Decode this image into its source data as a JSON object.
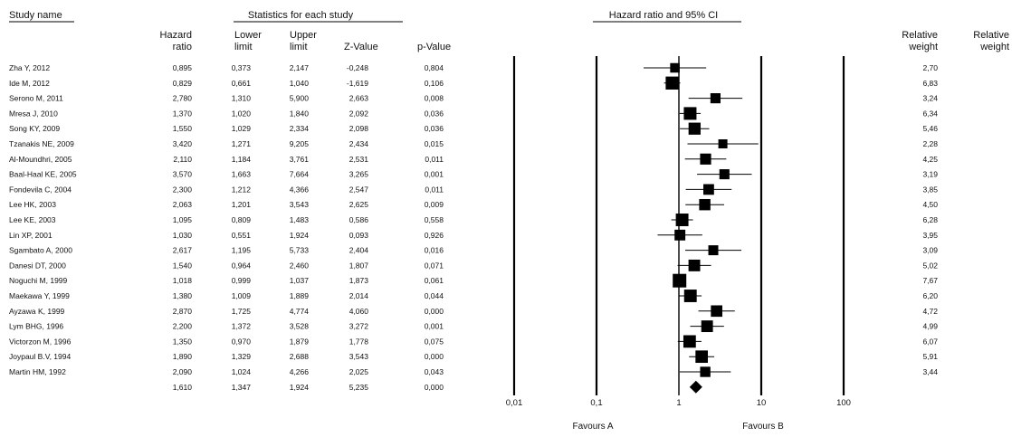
{
  "headers": {
    "study": "Study name",
    "stats_group": "Statistics for each study",
    "plot_group": "Hazard ratio and 95% CI",
    "hr": [
      "Hazard",
      "ratio"
    ],
    "lower": [
      "Lower",
      "limit"
    ],
    "upper": [
      "Upper",
      "limit"
    ],
    "z": "Z-Value",
    "p": "p-Value",
    "weight1": [
      "Relative",
      "weight"
    ],
    "weight2": [
      "Relative",
      "weight"
    ]
  },
  "footer": {
    "favours_a": "Favours A",
    "favours_b": "Favours B"
  },
  "chart_data": {
    "type": "forest",
    "x_scale": "log",
    "x_ticks": [
      {
        "value": 0.01,
        "label": "0,01"
      },
      {
        "value": 0.1,
        "label": "0,1"
      },
      {
        "value": 1,
        "label": "1"
      },
      {
        "value": 10,
        "label": "10"
      },
      {
        "value": 100,
        "label": "100"
      }
    ],
    "reference_line": 1,
    "studies": [
      {
        "name": "Zha Y, 2012",
        "hr": 0.895,
        "hr_text": "0,895",
        "lower": 0.373,
        "lower_text": "0,373",
        "upper": 2.147,
        "upper_text": "2,147",
        "z": "-0,248",
        "p": "0,804",
        "weight": 2.7,
        "weight_text": "2,70"
      },
      {
        "name": "Ide M, 2012",
        "hr": 0.829,
        "hr_text": "0,829",
        "lower": 0.661,
        "lower_text": "0,661",
        "upper": 1.04,
        "upper_text": "1,040",
        "z": "-1,619",
        "p": "0,106",
        "weight": 6.83,
        "weight_text": "6,83"
      },
      {
        "name": "Serono M, 2011",
        "hr": 2.78,
        "hr_text": "2,780",
        "lower": 1.31,
        "lower_text": "1,310",
        "upper": 5.9,
        "upper_text": "5,900",
        "z": "2,663",
        "p": "0,008",
        "weight": 3.24,
        "weight_text": "3,24"
      },
      {
        "name": "Mresa J, 2010",
        "hr": 1.37,
        "hr_text": "1,370",
        "lower": 1.02,
        "lower_text": "1,020",
        "upper": 1.84,
        "upper_text": "1,840",
        "z": "2,092",
        "p": "0,036",
        "weight": 6.34,
        "weight_text": "6,34"
      },
      {
        "name": "Song KY, 2009",
        "hr": 1.55,
        "hr_text": "1,550",
        "lower": 1.029,
        "lower_text": "1,029",
        "upper": 2.334,
        "upper_text": "2,334",
        "z": "2,098",
        "p": "0,036",
        "weight": 5.46,
        "weight_text": "5,46"
      },
      {
        "name": "Tzanakis NE, 2009",
        "hr": 3.42,
        "hr_text": "3,420",
        "lower": 1.271,
        "lower_text": "1,271",
        "upper": 9.205,
        "upper_text": "9,205",
        "z": "2,434",
        "p": "0,015",
        "weight": 2.28,
        "weight_text": "2,28"
      },
      {
        "name": "Al-Moundhri, 2005",
        "hr": 2.11,
        "hr_text": "2,110",
        "lower": 1.184,
        "lower_text": "1,184",
        "upper": 3.761,
        "upper_text": "3,761",
        "z": "2,531",
        "p": "0,011",
        "weight": 4.25,
        "weight_text": "4,25"
      },
      {
        "name": "Baal-Haal KE, 2005",
        "hr": 3.57,
        "hr_text": "3,570",
        "lower": 1.663,
        "lower_text": "1,663",
        "upper": 7.664,
        "upper_text": "7,664",
        "z": "3,265",
        "p": "0,001",
        "weight": 3.19,
        "weight_text": "3,19"
      },
      {
        "name": "Fondevila C, 2004",
        "hr": 2.3,
        "hr_text": "2,300",
        "lower": 1.212,
        "lower_text": "1,212",
        "upper": 4.366,
        "upper_text": "4,366",
        "z": "2,547",
        "p": "0,011",
        "weight": 3.85,
        "weight_text": "3,85"
      },
      {
        "name": "Lee HK, 2003",
        "hr": 2.063,
        "hr_text": "2,063",
        "lower": 1.201,
        "lower_text": "1,201",
        "upper": 3.543,
        "upper_text": "3,543",
        "z": "2,625",
        "p": "0,009",
        "weight": 4.5,
        "weight_text": "4,50"
      },
      {
        "name": "Lee KE, 2003",
        "hr": 1.095,
        "hr_text": "1,095",
        "lower": 0.809,
        "lower_text": "0,809",
        "upper": 1.483,
        "upper_text": "1,483",
        "z": "0,586",
        "p": "0,558",
        "weight": 6.28,
        "weight_text": "6,28"
      },
      {
        "name": "Lin XP, 2001",
        "hr": 1.03,
        "hr_text": "1,030",
        "lower": 0.551,
        "lower_text": "0,551",
        "upper": 1.924,
        "upper_text": "1,924",
        "z": "0,093",
        "p": "0,926",
        "weight": 3.95,
        "weight_text": "3,95"
      },
      {
        "name": "Sgambato A, 2000",
        "hr": 2.617,
        "hr_text": "2,617",
        "lower": 1.195,
        "lower_text": "1,195",
        "upper": 5.733,
        "upper_text": "5,733",
        "z": "2,404",
        "p": "0,016",
        "weight": 3.09,
        "weight_text": "3,09"
      },
      {
        "name": "Danesi DT, 2000",
        "hr": 1.54,
        "hr_text": "1,540",
        "lower": 0.964,
        "lower_text": "0,964",
        "upper": 2.46,
        "upper_text": "2,460",
        "z": "1,807",
        "p": "0,071",
        "weight": 5.02,
        "weight_text": "5,02"
      },
      {
        "name": "Noguchi M, 1999",
        "hr": 1.018,
        "hr_text": "1,018",
        "lower": 0.999,
        "lower_text": "0,999",
        "upper": 1.037,
        "upper_text": "1,037",
        "z": "1,873",
        "p": "0,061",
        "weight": 7.67,
        "weight_text": "7,67"
      },
      {
        "name": " Maekawa Y, 1999",
        "hr": 1.38,
        "hr_text": "1,380",
        "lower": 1.009,
        "lower_text": "1,009",
        "upper": 1.889,
        "upper_text": "1,889",
        "z": "2,014",
        "p": "0,044",
        "weight": 6.2,
        "weight_text": "6,20"
      },
      {
        "name": "Ayzawa K, 1999",
        "hr": 2.87,
        "hr_text": "2,870",
        "lower": 1.725,
        "lower_text": "1,725",
        "upper": 4.774,
        "upper_text": "4,774",
        "z": "4,060",
        "p": "0,000",
        "weight": 4.72,
        "weight_text": "4,72"
      },
      {
        "name": "Lym BHG, 1996",
        "hr": 2.2,
        "hr_text": "2,200",
        "lower": 1.372,
        "lower_text": "1,372",
        "upper": 3.528,
        "upper_text": "3,528",
        "z": "3,272",
        "p": "0,001",
        "weight": 4.99,
        "weight_text": "4,99"
      },
      {
        "name": "Victorzon M, 1996",
        "hr": 1.35,
        "hr_text": "1,350",
        "lower": 0.97,
        "lower_text": "0,970",
        "upper": 1.879,
        "upper_text": "1,879",
        "z": "1,778",
        "p": "0,075",
        "weight": 6.07,
        "weight_text": "6,07"
      },
      {
        "name": "Joypaul B.V, 1994",
        "hr": 1.89,
        "hr_text": "1,890",
        "lower": 1.329,
        "lower_text": "1,329",
        "upper": 2.688,
        "upper_text": "2,688",
        "z": "3,543",
        "p": "0,000",
        "weight": 5.91,
        "weight_text": "5,91"
      },
      {
        "name": "Martin HM, 1992",
        "hr": 2.09,
        "hr_text": "2,090",
        "lower": 1.024,
        "lower_text": "1,024",
        "upper": 4.266,
        "upper_text": "4,266",
        "z": "2,025",
        "p": "0,043",
        "weight": 3.44,
        "weight_text": "3,44"
      }
    ],
    "pooled": {
      "hr": 1.61,
      "hr_text": "1,610",
      "lower": 1.347,
      "lower_text": "1,347",
      "upper": 1.924,
      "upper_text": "1,924",
      "z": "5,235",
      "p": "0,000"
    }
  }
}
